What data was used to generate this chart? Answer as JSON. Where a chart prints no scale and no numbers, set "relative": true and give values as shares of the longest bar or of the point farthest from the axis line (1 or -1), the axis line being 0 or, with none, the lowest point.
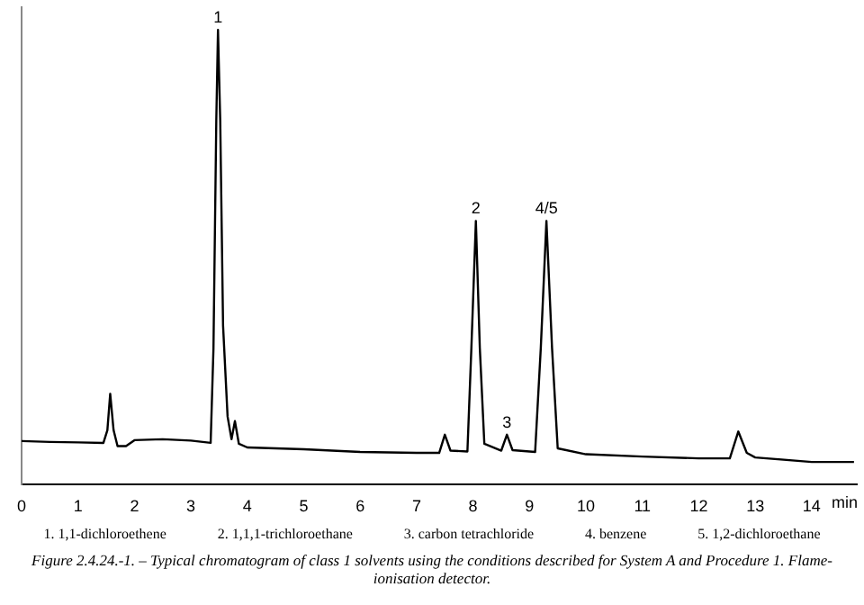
{
  "chart_data": {
    "type": "line",
    "title": "Figure 2.4.24.-1. – Typical chromatogram of class 1 solvents using the conditions described for System A and Procedure 1. Flame-ionisation detector.",
    "xlabel": "min",
    "relative": true,
    "color": "#000000",
    "grid": false,
    "legend": false,
    "marker": "none",
    "line_style": "solid",
    "xlim": [
      0,
      14.8
    ],
    "xticks": [
      0,
      1,
      2,
      3,
      4,
      5,
      6,
      7,
      8,
      9,
      10,
      11,
      12,
      13,
      14
    ],
    "x": [
      0,
      0.5,
      1.0,
      1.45,
      1.52,
      1.57,
      1.63,
      1.7,
      1.85,
      2.0,
      2.5,
      3.0,
      3.35,
      3.4,
      3.45,
      3.48,
      3.52,
      3.57,
      3.65,
      3.72,
      3.78,
      3.85,
      4.0,
      5.0,
      6.0,
      7.0,
      7.4,
      7.5,
      7.6,
      7.9,
      7.97,
      8.05,
      8.12,
      8.2,
      8.5,
      8.6,
      8.7,
      9.1,
      9.2,
      9.3,
      9.4,
      9.5,
      10,
      11,
      12,
      12.55,
      12.7,
      12.85,
      13.0,
      14.0,
      14.75
    ],
    "values": [
      0.096,
      0.094,
      0.093,
      0.092,
      0.12,
      0.2,
      0.12,
      0.085,
      0.085,
      0.098,
      0.1,
      0.097,
      0.092,
      0.3,
      0.8,
      1.0,
      0.8,
      0.35,
      0.15,
      0.1,
      0.14,
      0.09,
      0.082,
      0.078,
      0.072,
      0.07,
      0.07,
      0.11,
      0.075,
      0.073,
      0.3,
      0.58,
      0.3,
      0.09,
      0.075,
      0.11,
      0.076,
      0.072,
      0.3,
      0.58,
      0.3,
      0.08,
      0.067,
      0.062,
      0.058,
      0.058,
      0.117,
      0.07,
      0.06,
      0.05,
      0.05
    ],
    "annotations": [
      {
        "text": "1",
        "x": 3.48,
        "y": 1.0
      },
      {
        "text": "2",
        "x": 8.05,
        "y": 0.58
      },
      {
        "text": "3",
        "x": 8.6,
        "y": 0.11
      },
      {
        "text": "4/5",
        "x": 9.3,
        "y": 0.58
      },
      "1. 1,1-dichloroethene",
      "2. 1,1,1-trichloroethane",
      "3. carbon tetrachloride",
      "4. benzene",
      "5. 1,2-dichloroethane"
    ]
  }
}
